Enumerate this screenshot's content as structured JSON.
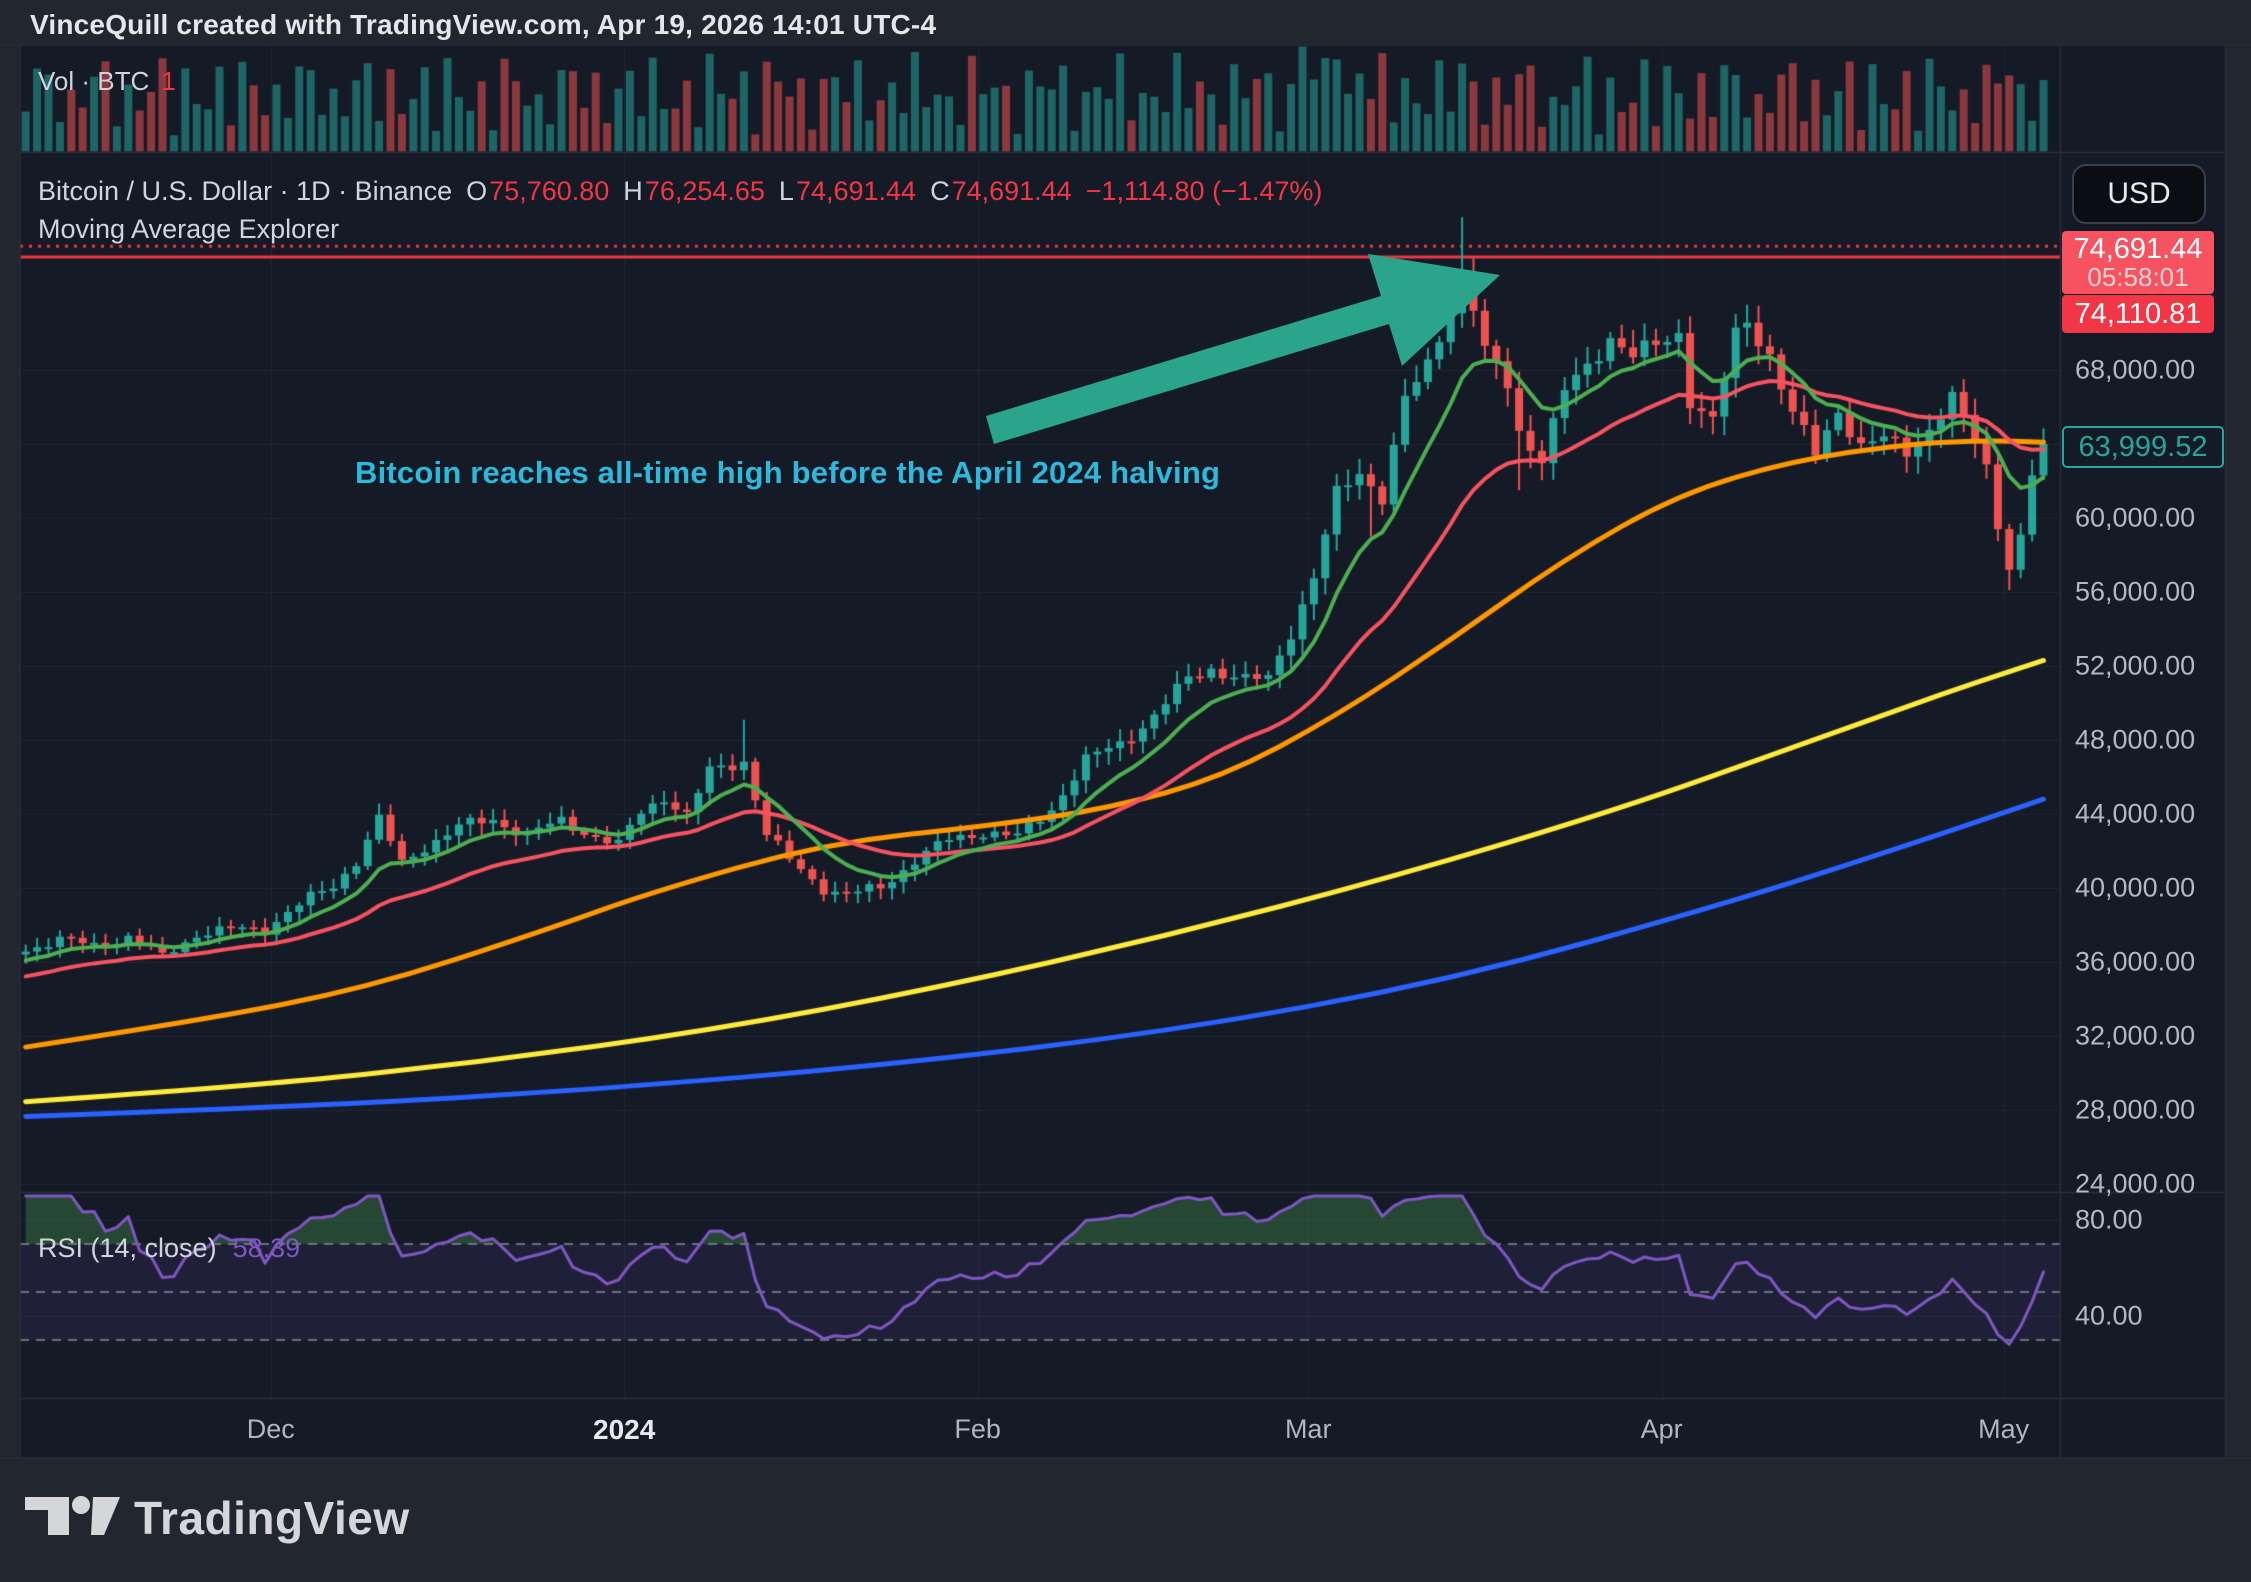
{
  "header": {
    "attribution": "VinceQuill created with TradingView.com, Apr 19, 2026 14:01 UTC-4"
  },
  "volume_pane": {
    "label": "Vol · BTC",
    "value": "1"
  },
  "symbol_row": {
    "name": "Bitcoin / U.S. Dollar · 1D · Binance",
    "o_label": "O",
    "o": "75,760.80",
    "h_label": "H",
    "h": "76,254.65",
    "l_label": "L",
    "l": "74,691.44",
    "c_label": "C",
    "c": "74,691.44",
    "change": "−1,114.80 (−1.47%)"
  },
  "indicator_row": {
    "label": "Moving Average Explorer"
  },
  "annotation": {
    "text": "Bitcoin reaches all-time high before the April 2024 halving"
  },
  "price_scale": {
    "currency": "USD",
    "price_label": {
      "value": "74,691.44",
      "countdown": "05:58:01"
    },
    "secondary_price_label": "74,110.81",
    "last_close_label": "63,999.52"
  },
  "rsi_pane": {
    "label": "RSI (14, close)",
    "value": "58.39"
  },
  "footer": {
    "brand": "TradingView"
  },
  "colors": {
    "background_outer": "#22262e",
    "background_chart": "#151a27",
    "divider": "#2a2e39",
    "grid": "rgba(170,178,200,0.07)",
    "candle_up": "#26a69a",
    "candle_down": "#ef5350",
    "volume_up": "rgba(38,166,154,0.55)",
    "volume_down": "rgba(239,83,80,0.55)",
    "price_line_red": "#f23645",
    "rsi_purple": "#7e57c2",
    "rsi_band": "rgba(126,87,194,0.10)",
    "rsi_dashed": "rgba(190,193,203,0.5)",
    "rsi_overbought_fill": "rgba(76,175,80,0.30)",
    "arrow_teal": "#2aa58c",
    "annotation_cyan": "#2cb9dc"
  },
  "chart_data": {
    "type": "candlestick",
    "title": "Bitcoin / U.S. Dollar, 1D, Binance — Moving Average Explorer + RSI(14)",
    "x_domain": "Daily bars, early Nov 2023 through early May 2024 (day index 0 = Nov 9 2023)",
    "x_axis_labels": [
      {
        "label": "Dec",
        "day": 22,
        "bold": false
      },
      {
        "label": "2024",
        "day": 53,
        "bold": true
      },
      {
        "label": "Feb",
        "day": 84,
        "bold": false
      },
      {
        "label": "Mar",
        "day": 113,
        "bold": false
      },
      {
        "label": "Apr",
        "day": 144,
        "bold": false
      },
      {
        "label": "May",
        "day": 174,
        "bold": false
      }
    ],
    "y_ticks": [
      {
        "value": 68000,
        "label": "68,000.00"
      },
      {
        "value": 60000,
        "label": "60,000.00"
      },
      {
        "value": 56000,
        "label": "56,000.00"
      },
      {
        "value": 52000,
        "label": "52,000.00"
      },
      {
        "value": 48000,
        "label": "48,000.00"
      },
      {
        "value": 44000,
        "label": "44,000.00"
      },
      {
        "value": 40000,
        "label": "40,000.00"
      },
      {
        "value": 36000,
        "label": "36,000.00"
      },
      {
        "value": 32000,
        "label": "32,000.00"
      },
      {
        "value": 28000,
        "label": "28,000.00"
      },
      {
        "value": 24000,
        "label": "24,000.00"
      }
    ],
    "ylim": [
      23500,
      79800
    ],
    "grid_step": 4000,
    "rsi_ticks": [
      {
        "value": 80,
        "label": "80.00"
      },
      {
        "value": 40,
        "label": "40.00"
      }
    ],
    "rsi_levels": [
      70,
      50,
      30
    ],
    "rsi": {
      "period": 14,
      "source": "close",
      "current": 58.39
    },
    "price_lines": [
      {
        "value": 74691.44,
        "style": "dotted"
      },
      {
        "value": 74110.81,
        "style": "solid"
      }
    ],
    "all_time_high": 76254.65,
    "last_close": 63999.52,
    "close_anchors": [
      [
        0,
        36700
      ],
      [
        3,
        37200
      ],
      [
        6,
        36900
      ],
      [
        9,
        37350
      ],
      [
        12,
        36300
      ],
      [
        15,
        37500
      ],
      [
        18,
        37750
      ],
      [
        21,
        37800
      ],
      [
        23,
        38700
      ],
      [
        25,
        39450
      ],
      [
        27,
        40100
      ],
      [
        29,
        41500
      ],
      [
        31,
        43700
      ],
      [
        33,
        41300
      ],
      [
        35,
        42250
      ],
      [
        38,
        43300
      ],
      [
        41,
        43700
      ],
      [
        44,
        42900
      ],
      [
        47,
        43600
      ],
      [
        50,
        42800
      ],
      [
        52,
        42300
      ],
      [
        54,
        44100
      ],
      [
        56,
        44950
      ],
      [
        58,
        43900
      ],
      [
        60,
        46300
      ],
      [
        63,
        46900
      ],
      [
        65,
        42900
      ],
      [
        67,
        41500
      ],
      [
        70,
        40000
      ],
      [
        72,
        39600
      ],
      [
        75,
        40050
      ],
      [
        78,
        41500
      ],
      [
        81,
        42600
      ],
      [
        84,
        43050
      ],
      [
        87,
        42750
      ],
      [
        90,
        44300
      ],
      [
        93,
        46900
      ],
      [
        96,
        47800
      ],
      [
        99,
        49300
      ],
      [
        102,
        51300
      ],
      [
        104,
        51900
      ],
      [
        107,
        51200
      ],
      [
        109,
        51300
      ],
      [
        111,
        53900
      ],
      [
        113,
        56800
      ],
      [
        115,
        61200
      ],
      [
        117,
        62500
      ],
      [
        119,
        61200
      ],
      [
        121,
        66300
      ],
      [
        123,
        68200
      ],
      [
        125,
        71500
      ],
      [
        126,
        73100
      ],
      [
        127,
        71400
      ],
      [
        128,
        68900
      ],
      [
        130,
        67200
      ],
      [
        131,
        64700
      ],
      [
        133,
        63300
      ],
      [
        135,
        66800
      ],
      [
        137,
        68100
      ],
      [
        139,
        69900
      ],
      [
        141,
        68800
      ],
      [
        143,
        69200
      ],
      [
        145,
        70000
      ],
      [
        146,
        66500
      ],
      [
        148,
        65200
      ],
      [
        150,
        69800
      ],
      [
        151,
        70600
      ],
      [
        153,
        68900
      ],
      [
        155,
        65600
      ],
      [
        157,
        63400
      ],
      [
        159,
        65900
      ],
      [
        161,
        63900
      ],
      [
        163,
        64200
      ],
      [
        165,
        63600
      ],
      [
        167,
        64900
      ],
      [
        169,
        66400
      ],
      [
        171,
        64100
      ],
      [
        172,
        62900
      ],
      [
        173,
        59400
      ],
      [
        174,
        57200
      ],
      [
        175,
        59100
      ],
      [
        176,
        62300
      ],
      [
        177,
        63999.52
      ]
    ],
    "bar_overrides": {
      "63": {
        "high": 49100
      },
      "118": {
        "low": 59000
      },
      "126": {
        "high": 76254.65
      },
      "131": {
        "low": 61500
      },
      "174": {
        "low": 56100
      }
    },
    "volume_spikes": {
      "63": 80,
      "112": 105,
      "113": 72,
      "115": 92,
      "117": 78,
      "126": 88,
      "127": 70,
      "173": 68,
      "174": 76
    },
    "ma_lines": [
      {
        "name": "fast-ema",
        "color": "#4caf50",
        "width": 4,
        "compute": "ema",
        "period": 9
      },
      {
        "name": "medium-ema",
        "color": "#f7525f",
        "width": 4,
        "compute": "ema",
        "period": 25
      },
      {
        "name": "slow-ma",
        "color": "#ff9800",
        "width": 5,
        "anchors": [
          [
            0,
            31400
          ],
          [
            15,
            32800
          ],
          [
            30,
            34600
          ],
          [
            45,
            37600
          ],
          [
            55,
            39800
          ],
          [
            70,
            42400
          ],
          [
            85,
            43400
          ],
          [
            95,
            44300
          ],
          [
            105,
            46000
          ],
          [
            115,
            49300
          ],
          [
            125,
            53400
          ],
          [
            135,
            57800
          ],
          [
            145,
            61300
          ],
          [
            155,
            63100
          ],
          [
            165,
            64000
          ],
          [
            172,
            64200
          ],
          [
            177,
            64100
          ]
        ]
      },
      {
        "name": "100-day-ma",
        "color": "#ffeb3b",
        "width": 5,
        "anchors": [
          [
            0,
            28450
          ],
          [
            20,
            29300
          ],
          [
            40,
            30600
          ],
          [
            60,
            32300
          ],
          [
            80,
            34600
          ],
          [
            100,
            37400
          ],
          [
            120,
            40600
          ],
          [
            140,
            44300
          ],
          [
            155,
            47600
          ],
          [
            165,
            49800
          ],
          [
            171,
            51100
          ],
          [
            177,
            52300
          ]
        ]
      },
      {
        "name": "200-day-ma",
        "color": "#2962ff",
        "width": 5,
        "anchors": [
          [
            0,
            27650
          ],
          [
            25,
            28200
          ],
          [
            50,
            29100
          ],
          [
            75,
            30400
          ],
          [
            100,
            32200
          ],
          [
            125,
            35000
          ],
          [
            150,
            39300
          ],
          [
            165,
            42300
          ],
          [
            177,
            44800
          ]
        ]
      }
    ]
  }
}
